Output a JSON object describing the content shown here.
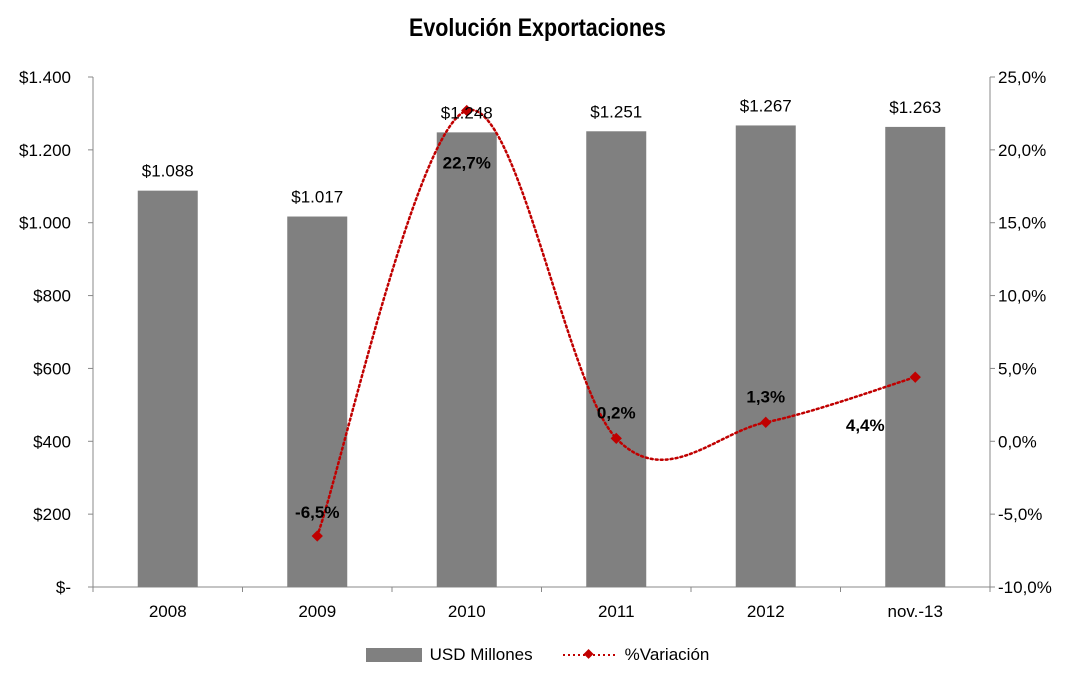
{
  "chart_data": {
    "type": "bar",
    "title": "Evolución Exportaciones",
    "categories": [
      "2008",
      "2009",
      "2010",
      "2011",
      "2012",
      "nov.-13"
    ],
    "series": [
      {
        "name": "USD Millones",
        "type": "bar",
        "axis": "left",
        "color": "#808080",
        "values": [
          1088,
          1017,
          1248,
          1251,
          1267,
          1263
        ],
        "labels": [
          "$1.088",
          "$1.017",
          "$1.248",
          "$1.251",
          "$1.267",
          "$1.263"
        ]
      },
      {
        "name": "%Variación",
        "type": "line",
        "axis": "right",
        "color": "#C00000",
        "style": "dotted-smooth-diamond-markers",
        "values": [
          null,
          -6.5,
          22.7,
          0.2,
          1.3,
          4.4
        ],
        "labels": [
          "",
          "-6,5%",
          "22,7%",
          "0,2%",
          "1,3%",
          "4,4%"
        ]
      }
    ],
    "y_left": {
      "ylim": [
        0,
        1400
      ],
      "ticks": [
        0,
        200,
        400,
        600,
        800,
        1000,
        1200,
        1400
      ],
      "tick_labels": [
        "$-",
        "$200",
        "$400",
        "$600",
        "$800",
        "$1.000",
        "$1.200",
        "$1.400"
      ]
    },
    "y_right": {
      "ylim": [
        -10,
        25
      ],
      "ticks": [
        -10,
        -5,
        0,
        5,
        10,
        15,
        20,
        25
      ],
      "tick_labels": [
        "-10,0%",
        "-5,0%",
        "0,0%",
        "5,0%",
        "10,0%",
        "15,0%",
        "20,0%",
        "25,0%"
      ]
    },
    "grid": false,
    "legend_position": "bottom"
  }
}
